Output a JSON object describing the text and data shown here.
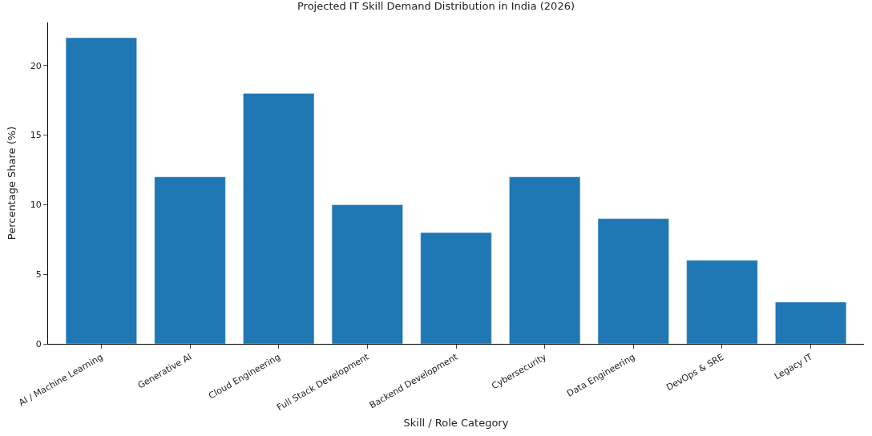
{
  "chart_data": {
    "type": "bar",
    "title": "Projected IT Skill Demand Distribution in India (2026)",
    "xlabel": "Skill / Role Category",
    "ylabel": "Percentage Share (%)",
    "categories": [
      "AI / Machine Learning",
      "Generative AI",
      "Cloud Engineering",
      "Full Stack Development",
      "Backend Development",
      "Cybersecurity",
      "Data Engineering",
      "DevOps & SRE",
      "Legacy IT"
    ],
    "values": [
      22,
      12,
      18,
      10,
      8,
      12,
      9,
      6,
      3
    ],
    "color": "#1f77b4",
    "ylim": [
      0,
      23.1
    ],
    "yticks": [
      0,
      5,
      10,
      15,
      20
    ],
    "legend": false
  }
}
